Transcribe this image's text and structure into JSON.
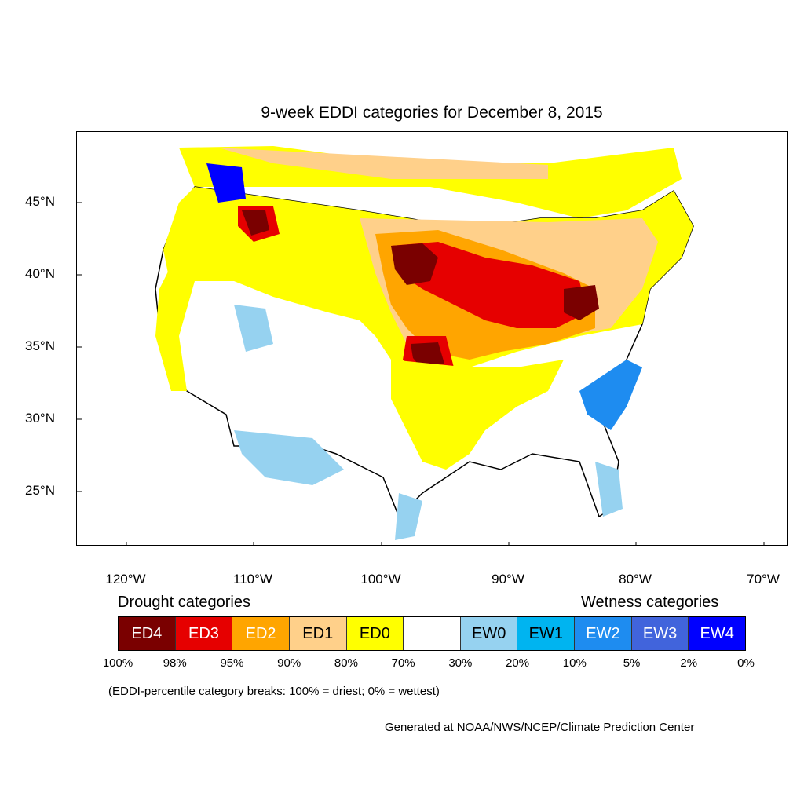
{
  "title": "9-week EDDI categories for December 8, 2015",
  "latitude_labels": [
    "45°N",
    "40°N",
    "35°N",
    "30°N",
    "25°N"
  ],
  "longitude_labels": [
    "120°W",
    "110°W",
    "100°W",
    "90°W",
    "80°W",
    "70°W"
  ],
  "legend": {
    "drought_heading": "Drought categories",
    "wetness_heading": "Wetness categories",
    "categories": [
      {
        "label": "ED4",
        "color": "#7a0000",
        "text_color": "#ffffff"
      },
      {
        "label": "ED3",
        "color": "#e60000",
        "text_color": "#ffffff"
      },
      {
        "label": "ED2",
        "color": "#ffa500",
        "text_color": "#ffffff"
      },
      {
        "label": "ED1",
        "color": "#ffd08a",
        "text_color": "#000000"
      },
      {
        "label": "ED0",
        "color": "#ffff00",
        "text_color": "#000000"
      },
      {
        "label": "",
        "color": "#ffffff",
        "text_color": "#000000"
      },
      {
        "label": "EW0",
        "color": "#96d2f0",
        "text_color": "#000000"
      },
      {
        "label": "EW1",
        "color": "#00b4f0",
        "text_color": "#000000"
      },
      {
        "label": "EW2",
        "color": "#1e8cf0",
        "text_color": "#ffffff"
      },
      {
        "label": "EW3",
        "color": "#4164dc",
        "text_color": "#ffffff"
      },
      {
        "label": "EW4",
        "color": "#0000ff",
        "text_color": "#ffffff"
      }
    ],
    "percent_breaks": [
      "100%",
      "98%",
      "95%",
      "90%",
      "80%",
      "70%",
      "30%",
      "20%",
      "10%",
      "5%",
      "2%",
      "0%"
    ]
  },
  "note": "(EDDI-percentile category breaks: 100% = driest; 0% = wettest)",
  "credit": "Generated at NOAA/NWS/NCEP/Climate Prediction Center"
}
